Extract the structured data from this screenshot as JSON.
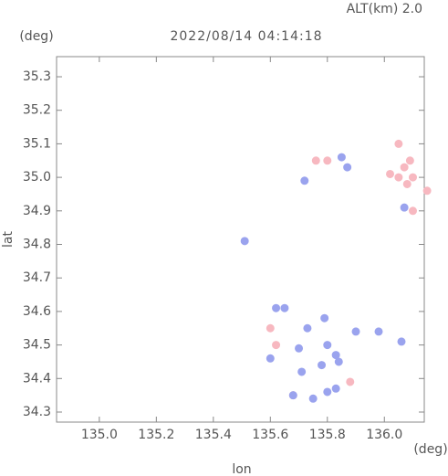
{
  "header": {
    "altitude": "ALT(km) 2.0",
    "y_unit": "(deg)",
    "x_unit": "(deg)"
  },
  "chart_data": {
    "type": "scatter",
    "title": "2022/08/14 04:14:18",
    "x_label": "lon",
    "y_label": "lat",
    "xlim": [
      134.85,
      136.14
    ],
    "ylim": [
      34.27,
      35.36
    ],
    "xticks": [
      {
        "value": 135.0,
        "label": "135.0"
      },
      135.2,
      135.4,
      135.6,
      135.8,
      {
        "value": 136.0,
        "label": "136.0"
      }
    ],
    "yticks": [
      34.3,
      34.4,
      34.5,
      34.6,
      34.7,
      34.8,
      34.9,
      {
        "value": 35.0,
        "label": "35.0"
      },
      35.1,
      35.2,
      35.3
    ],
    "grid": false,
    "series": [
      {
        "color": "#f7b8c0",
        "x": [
          136.07,
          136.09,
          136.05,
          136.1,
          136.08,
          136.02,
          136.15,
          136.1,
          135.8,
          135.76,
          135.6,
          135.62,
          135.88,
          135.68,
          136.05
        ],
        "values": [
          35.03,
          35.05,
          35.0,
          35.0,
          34.98,
          35.01,
          34.96,
          34.9,
          35.05,
          35.05,
          34.55,
          34.5,
          34.39,
          34.35,
          35.1
        ]
      },
      {
        "color": "#9aa3ee",
        "x": [
          135.51,
          135.72,
          135.62,
          135.65,
          135.79,
          135.73,
          135.8,
          135.83,
          135.84,
          135.78,
          135.71,
          135.68,
          135.75,
          135.8,
          135.83,
          135.9,
          135.98,
          136.06,
          135.85,
          135.87,
          136.07,
          135.6,
          135.7
        ],
        "values": [
          34.81,
          34.99,
          34.61,
          34.61,
          34.58,
          34.55,
          34.5,
          34.47,
          34.45,
          34.44,
          34.42,
          34.35,
          34.34,
          34.36,
          34.37,
          34.54,
          34.54,
          34.51,
          35.06,
          35.03,
          34.91,
          34.46,
          34.49
        ]
      }
    ]
  }
}
